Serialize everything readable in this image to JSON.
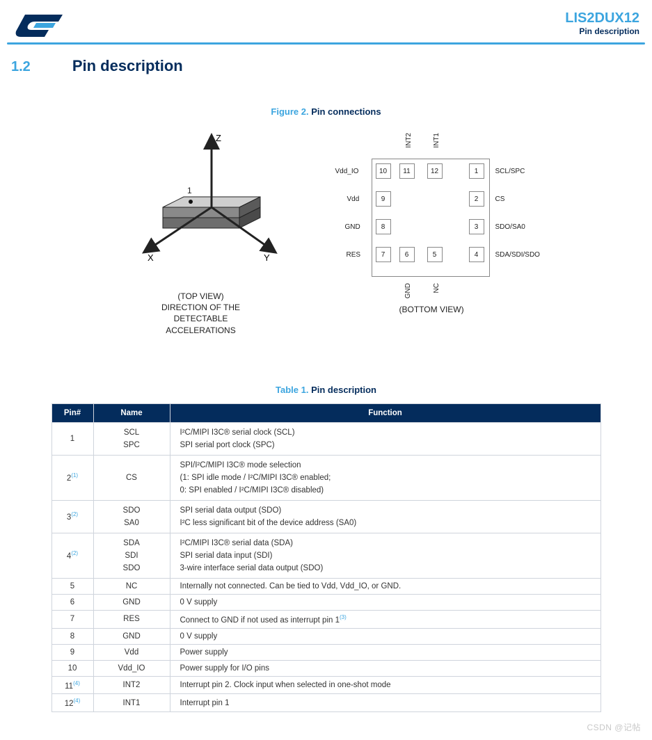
{
  "header": {
    "part_number": "LIS2DUX12",
    "subtitle": "Pin description"
  },
  "section": {
    "number": "1.2",
    "title": "Pin description"
  },
  "figure": {
    "label": "Figure 2.",
    "title": "Pin connections",
    "axes": {
      "x": "X",
      "y": "Y",
      "z": "Z",
      "pin1": "1"
    },
    "top_caption_line1": "(TOP VIEW)",
    "top_caption_line2": "DIRECTION OF THE",
    "top_caption_line3": "DETECTABLE",
    "top_caption_line4": "ACCELERATIONS",
    "bottom_caption": "(BOTTOM VIEW)",
    "pin_labels": {
      "left": {
        "r1": "Vdd_IO",
        "r2": "Vdd",
        "r3": "GND",
        "r4": "RES"
      },
      "right": {
        "r1": "SCL/SPC",
        "r2": "CS",
        "r3": "SDO/SA0",
        "r4": "SDA/SDI/SDO"
      },
      "top": {
        "c11": "INT2",
        "c12": "INT1"
      },
      "bottom": {
        "c6": "GND",
        "c5": "NC"
      }
    },
    "pins": {
      "p1": "1",
      "p2": "2",
      "p3": "3",
      "p4": "4",
      "p5": "5",
      "p6": "6",
      "p7": "7",
      "p8": "8",
      "p9": "9",
      "p10": "10",
      "p11": "11",
      "p12": "12"
    }
  },
  "table": {
    "label": "Table 1.",
    "title": "Pin description",
    "headers": {
      "c1": "Pin#",
      "c2": "Name",
      "c3": "Function"
    },
    "rows": {
      "r1": {
        "pin": "1",
        "note": "",
        "names": "SCL\nSPC",
        "funcs": "I²C/MIPI I3C® serial clock (SCL)\nSPI serial port clock (SPC)"
      },
      "r2": {
        "pin": "2",
        "note": "(1)",
        "names": "CS",
        "funcs": "SPI/I²C/MIPI I3C® mode selection\n(1: SPI idle mode / I²C/MIPI I3C® enabled;\n0: SPI enabled / I²C/MIPI I3C® disabled)"
      },
      "r3": {
        "pin": "3",
        "note": "(2)",
        "names": "SDO\nSA0",
        "funcs": "SPI serial data output (SDO)\nI²C less significant bit of the device address (SA0)"
      },
      "r4": {
        "pin": "4",
        "note": "(2)",
        "names": "SDA\nSDI\nSDO",
        "funcs": "I²C/MIPI I3C® serial data (SDA)\nSPI serial data input (SDI)\n3-wire interface serial data output (SDO)"
      },
      "r5": {
        "pin": "5",
        "note": "",
        "names": "NC",
        "funcs": "Internally not connected. Can be tied to Vdd, Vdd_IO, or GND."
      },
      "r6": {
        "pin": "6",
        "note": "",
        "names": "GND",
        "funcs": "0 V supply"
      },
      "r7": {
        "pin": "7",
        "note": "",
        "names": "RES",
        "funcs": "Connect to GND if not used as interrupt pin 1",
        "fn_note": "(3)"
      },
      "r8": {
        "pin": "8",
        "note": "",
        "names": "GND",
        "funcs": "0 V supply"
      },
      "r9": {
        "pin": "9",
        "note": "",
        "names": "Vdd",
        "funcs": "Power supply"
      },
      "r10": {
        "pin": "10",
        "note": "",
        "names": "Vdd_IO",
        "funcs": "Power supply for I/O pins"
      },
      "r11": {
        "pin": "11",
        "note": "(4)",
        "names": "INT2",
        "funcs": "Interrupt pin 2. Clock input when selected in one-shot mode"
      },
      "r12": {
        "pin": "12",
        "note": "(4)",
        "names": "INT1",
        "funcs": "Interrupt pin 1"
      }
    }
  },
  "watermark": "CSDN @记帖",
  "colors": {
    "accent": "#3ca5df",
    "navy": "#042c5c",
    "border": "#cfd4dc"
  }
}
